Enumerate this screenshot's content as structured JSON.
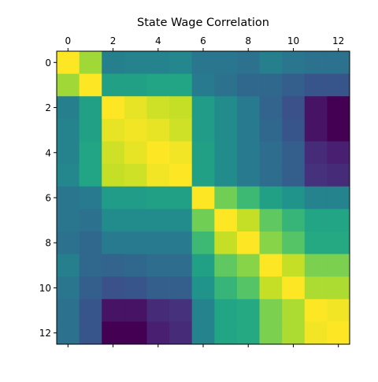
{
  "chart_data": {
    "type": "heatmap",
    "title": "State Wage Correlation",
    "rows": 13,
    "cols": 13,
    "x_ticks": [
      0,
      2,
      4,
      6,
      8,
      10,
      12
    ],
    "y_ticks": [
      0,
      2,
      4,
      6,
      8,
      10,
      12
    ],
    "x_tick_labels": [
      "0",
      "2",
      "4",
      "6",
      "8",
      "10",
      "12"
    ],
    "y_tick_labels": [
      "0",
      "2",
      "4",
      "6",
      "8",
      "10",
      "12"
    ],
    "x_axis_position": "top",
    "colormap": "viridis",
    "value_range": [
      0.72,
      1.0
    ],
    "grid": false,
    "values": [
      [
        1.0,
        0.96,
        0.84,
        0.845,
        0.845,
        0.85,
        0.83,
        0.83,
        0.825,
        0.84,
        0.83,
        0.825,
        0.825
      ],
      [
        0.96,
        1.0,
        0.88,
        0.88,
        0.885,
        0.885,
        0.835,
        0.825,
        0.815,
        0.815,
        0.805,
        0.795,
        0.795
      ],
      [
        0.84,
        0.88,
        1.0,
        0.99,
        0.98,
        0.975,
        0.875,
        0.855,
        0.835,
        0.81,
        0.79,
        0.735,
        0.72
      ],
      [
        0.845,
        0.88,
        0.99,
        0.995,
        0.99,
        0.98,
        0.875,
        0.855,
        0.835,
        0.815,
        0.795,
        0.735,
        0.72
      ],
      [
        0.845,
        0.885,
        0.98,
        0.99,
        1.0,
        0.995,
        0.88,
        0.855,
        0.835,
        0.82,
        0.805,
        0.755,
        0.745
      ],
      [
        0.85,
        0.885,
        0.975,
        0.98,
        0.995,
        1.0,
        0.88,
        0.855,
        0.835,
        0.82,
        0.805,
        0.76,
        0.755
      ],
      [
        0.83,
        0.835,
        0.875,
        0.875,
        0.88,
        0.88,
        1.0,
        0.94,
        0.91,
        0.88,
        0.865,
        0.845,
        0.845
      ],
      [
        0.83,
        0.825,
        0.855,
        0.855,
        0.855,
        0.855,
        0.94,
        1.0,
        0.975,
        0.93,
        0.905,
        0.885,
        0.885
      ],
      [
        0.825,
        0.815,
        0.835,
        0.835,
        0.835,
        0.835,
        0.91,
        0.975,
        1.0,
        0.95,
        0.925,
        0.89,
        0.89
      ],
      [
        0.84,
        0.815,
        0.81,
        0.815,
        0.82,
        0.82,
        0.88,
        0.93,
        0.95,
        1.0,
        0.975,
        0.945,
        0.945
      ],
      [
        0.83,
        0.805,
        0.79,
        0.795,
        0.805,
        0.805,
        0.865,
        0.905,
        0.925,
        0.975,
        1.0,
        0.965,
        0.965
      ],
      [
        0.825,
        0.795,
        0.735,
        0.735,
        0.755,
        0.76,
        0.845,
        0.885,
        0.89,
        0.945,
        0.965,
        1.0,
        0.995
      ],
      [
        0.825,
        0.795,
        0.72,
        0.72,
        0.745,
        0.755,
        0.845,
        0.885,
        0.89,
        0.945,
        0.965,
        0.995,
        1.0
      ]
    ]
  }
}
